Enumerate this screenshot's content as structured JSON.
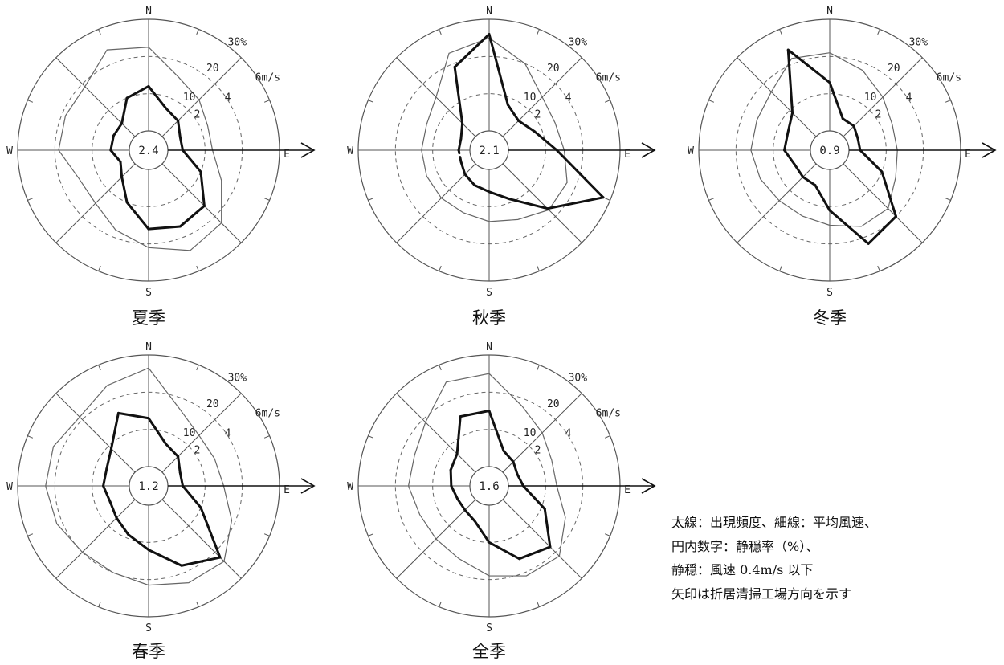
{
  "chart_data": [
    {
      "type": "windrose",
      "title": "夏季",
      "calm_rate": "2.4",
      "directions": [
        "N",
        "NNE",
        "NE",
        "ENE",
        "E",
        "ESE",
        "SE",
        "SSE",
        "S",
        "SSW",
        "SW",
        "WSW",
        "W",
        "WNW",
        "NW",
        "NNW"
      ],
      "frequency_pct": [
        12,
        7,
        6,
        4,
        4,
        10,
        16,
        17,
        16,
        10,
        5,
        3,
        5,
        5,
        5,
        10
      ],
      "mean_speed_ms": [
        4.5,
        3.2,
        2.8,
        2.4,
        2.4,
        3.2,
        4.5,
        4.8,
        4.2,
        3.6,
        3.0,
        3.0,
        3.8,
        3.8,
        3.8,
        4.8
      ],
      "direction_labels": {
        "n": "N",
        "e": "E",
        "s": "S",
        "w": "W"
      },
      "freq_ticks": [
        "10",
        "20",
        "30%"
      ],
      "speed_ticks": [
        "2",
        "4",
        "6m/s"
      ],
      "arrow_angle_deg": 90
    },
    {
      "type": "windrose",
      "title": "秋季",
      "calm_rate": "2.1",
      "directions": [
        "N",
        "NNE",
        "NE",
        "ENE",
        "E",
        "ESE",
        "SE",
        "SSE",
        "S",
        "SSW",
        "SW",
        "WSW",
        "W",
        "WNW",
        "NW",
        "NNW"
      ],
      "frequency_pct": [
        26,
        8,
        6,
        8,
        13,
        28,
        17,
        9,
        6,
        5,
        4,
        3,
        3,
        3,
        5,
        19
      ],
      "mean_speed_ms": [
        5.0,
        4.0,
        3.0,
        2.8,
        3.0,
        3.5,
        3.5,
        3.0,
        2.8,
        2.6,
        2.6,
        2.6,
        2.6,
        2.6,
        3.0,
        4.6
      ],
      "dashed_segment_from": "WSW",
      "dashed_segment_to": "W",
      "direction_labels": {
        "n": "N",
        "e": "E",
        "s": "S",
        "w": "W"
      },
      "freq_ticks": [
        "10",
        "20",
        "30%"
      ],
      "speed_ticks": [
        "2",
        "4",
        "6m/s"
      ],
      "arrow_angle_deg": 90
    },
    {
      "type": "windrose",
      "title": "冬季",
      "calm_rate": "0.9",
      "directions": [
        "N",
        "NNE",
        "NE",
        "ENE",
        "E",
        "ESE",
        "SE",
        "SSE",
        "S",
        "SSW",
        "SW",
        "WSW",
        "W",
        "WNW",
        "NW",
        "NNW"
      ],
      "frequency_pct": [
        13,
        4,
        4,
        3,
        3,
        10,
        20,
        22,
        11,
        5,
        5,
        5,
        7,
        7,
        9,
        24
      ],
      "mean_speed_ms": [
        4.2,
        3.6,
        3.0,
        2.6,
        2.6,
        2.8,
        3.4,
        3.4,
        3.0,
        2.8,
        2.8,
        3.0,
        3.2,
        3.2,
        3.4,
        4.3
      ],
      "direction_labels": {
        "n": "N",
        "e": "E",
        "s": "S",
        "w": "W"
      },
      "freq_ticks": [
        "10",
        "20",
        "30%"
      ],
      "speed_ticks": [
        "2",
        "4",
        "6m/s"
      ],
      "arrow_angle_deg": 90
    },
    {
      "type": "windrose",
      "title": "春季",
      "calm_rate": "1.2",
      "directions": [
        "N",
        "NNE",
        "NE",
        "ENE",
        "E",
        "ESE",
        "SE",
        "SSE",
        "S",
        "SSW",
        "SW",
        "WSW",
        "W",
        "WNW",
        "NW",
        "NNW"
      ],
      "frequency_pct": [
        13,
        7,
        6,
        4,
        4,
        10,
        22,
        18,
        12,
        9,
        7,
        6,
        7,
        7,
        9,
        16
      ],
      "mean_speed_ms": [
        5.3,
        3.4,
        2.8,
        2.8,
        3.0,
        3.8,
        4.7,
        4.6,
        4.3,
        4.0,
        4.0,
        4.3,
        4.5,
        4.5,
        4.2,
        4.8
      ],
      "direction_labels": {
        "n": "N",
        "e": "E",
        "s": "S",
        "w": "W"
      },
      "freq_ticks": [
        "10",
        "20",
        "30%"
      ],
      "speed_ticks": [
        "2",
        "4",
        "6m/s"
      ],
      "arrow_angle_deg": 90
    },
    {
      "type": "windrose",
      "title": "全季",
      "calm_rate": "1.6",
      "directions": [
        "N",
        "NNE",
        "NE",
        "ENE",
        "E",
        "ESE",
        "SE",
        "SSE",
        "S",
        "SSW",
        "SW",
        "WSW",
        "W",
        "WNW",
        "NW",
        "NNW"
      ],
      "frequency_pct": [
        15,
        5,
        4,
        3,
        4,
        11,
        18,
        16,
        10,
        5,
        4,
        4,
        5,
        6,
        7,
        15
      ],
      "mean_speed_ms": [
        5.0,
        3.6,
        3.0,
        2.6,
        2.6,
        3.4,
        4.3,
        4.2,
        3.8,
        3.2,
        3.0,
        3.0,
        3.3,
        3.3,
        3.8,
        5.0
      ],
      "direction_labels": {
        "n": "N",
        "e": "E",
        "s": "S",
        "w": "W"
      },
      "freq_ticks": [
        "10",
        "20",
        "30%"
      ],
      "speed_ticks": [
        "2",
        "4",
        "6m/s"
      ],
      "arrow_angle_deg": 90
    }
  ],
  "notes": {
    "line1": "太線：出現頻度、細線：平均風速、",
    "line2": "円内数字：静穏率（%）、",
    "line3": "静穏：風速 0.4m/s 以下",
    "line4": "矢印は折居清掃工場方向を示す"
  },
  "colors": {
    "line": "#111111",
    "grid": "#555555",
    "dash": "#666666"
  }
}
